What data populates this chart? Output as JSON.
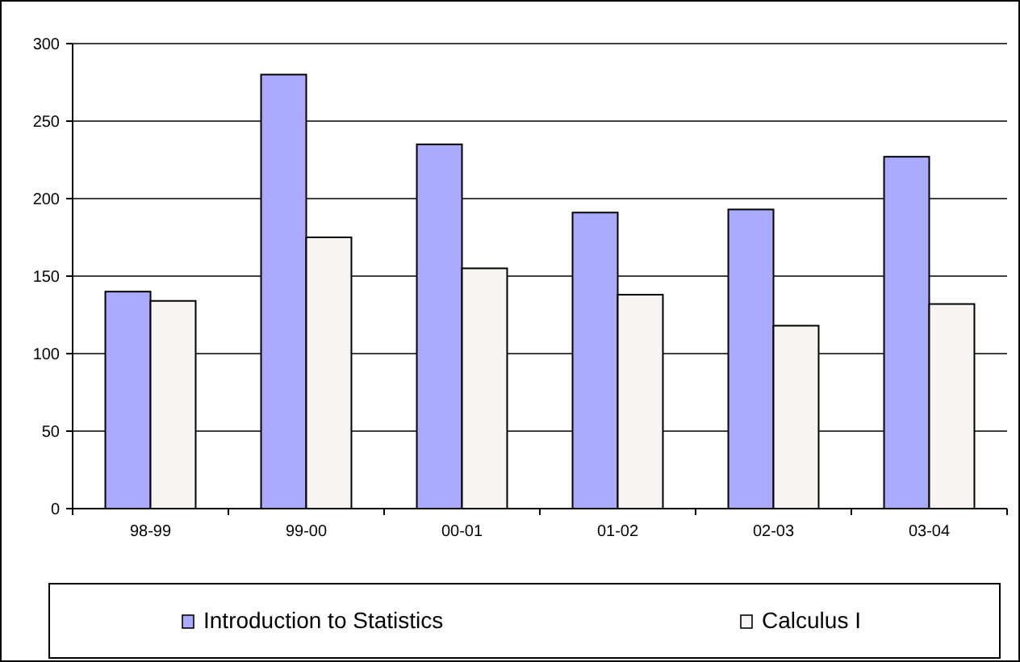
{
  "chart_data": {
    "type": "bar",
    "categories": [
      "98-99",
      "99-00",
      "00-01",
      "01-02",
      "02-03",
      "03-04"
    ],
    "series": [
      {
        "name": "Introduction to Statistics",
        "color": "#aaaaff",
        "values": [
          140,
          280,
          235,
          191,
          193,
          227
        ]
      },
      {
        "name": "Calculus I",
        "color": "#f8f4f4",
        "values": [
          134,
          175,
          155,
          138,
          118,
          132
        ]
      }
    ],
    "ylim": [
      0,
      300
    ],
    "yticks": [
      0,
      50,
      100,
      150,
      200,
      250,
      300
    ],
    "grid": "y",
    "legend": "bottom"
  }
}
